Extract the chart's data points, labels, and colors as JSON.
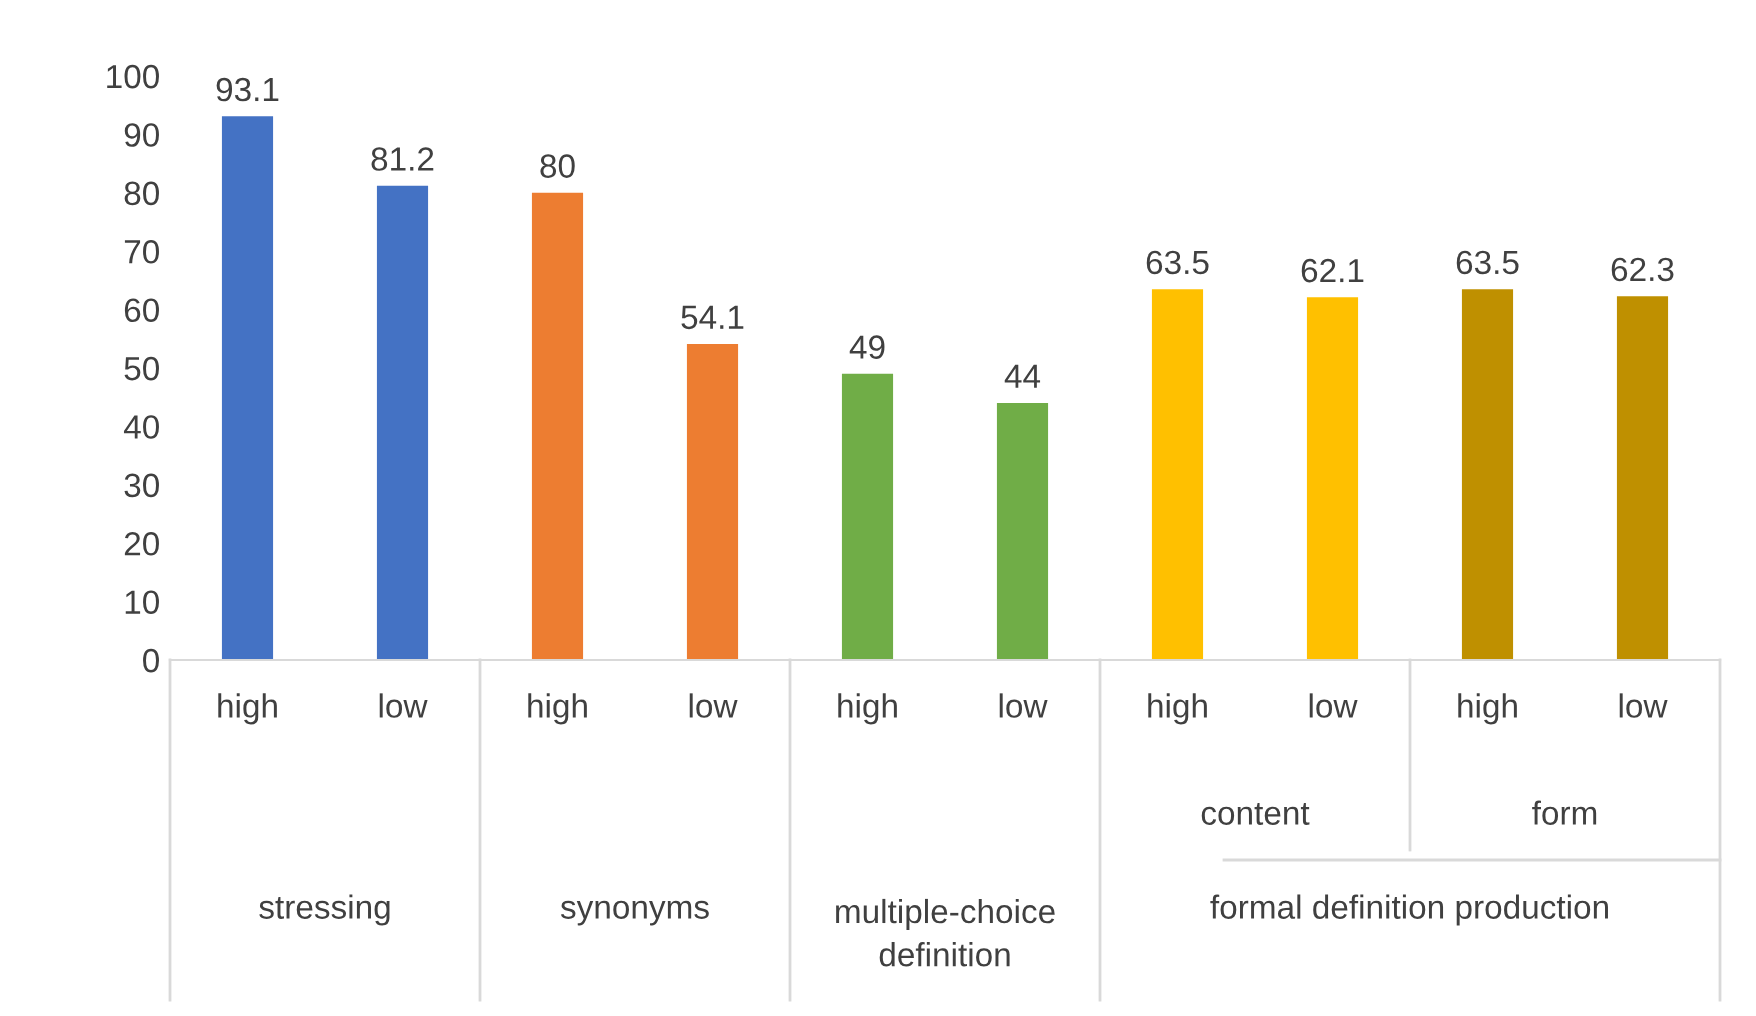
{
  "chart_data": {
    "type": "bar",
    "categories": [
      "high",
      "low",
      "high",
      "low",
      "high",
      "low",
      "high",
      "low",
      "high",
      "low"
    ],
    "values": [
      93.1,
      81.2,
      80,
      54.1,
      49,
      44,
      63.5,
      62.1,
      63.5,
      62.3
    ],
    "colors": [
      "#4472c4",
      "#4472c4",
      "#ed7d31",
      "#ed7d31",
      "#70ad47",
      "#70ad47",
      "#ffc000",
      "#ffc000",
      "#bf9000",
      "#bf9000"
    ],
    "ylim": [
      0,
      100
    ],
    "yticks": [
      0,
      10,
      20,
      30,
      40,
      50,
      60,
      70,
      80,
      90,
      100
    ],
    "data_labels": true,
    "grid": false,
    "annotations": [
      "content",
      "form",
      "stressing",
      "synonyms",
      "multiple-choice\ndefinition",
      "formal definition production"
    ]
  }
}
